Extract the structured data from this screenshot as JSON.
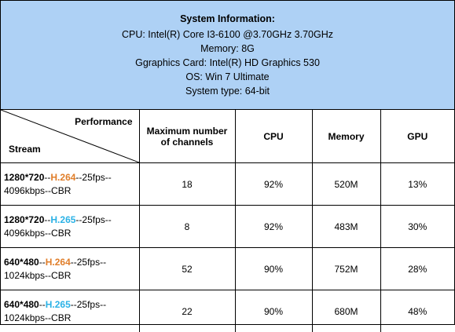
{
  "system_info": {
    "title": "System Information:",
    "cpu": "CPU:  Intel(R) Core I3-6100 @3.70GHz 3.70GHz",
    "memory": "Memory:   8G",
    "graphics": "Ggraphics Card:   Intel(R) HD Graphics 530",
    "os": "OS:   Win 7 Ultimate",
    "system_type": "System type: 64-bit",
    "background_color": "#aed1f5"
  },
  "table": {
    "header": {
      "performance": "Performance",
      "stream": "Stream",
      "channels_line1": "Maximum number",
      "channels_line2": "of channels",
      "cpu": "CPU",
      "memory": "Memory",
      "gpu": "GPU"
    },
    "codec_colors": {
      "H.264": "#e07e2a",
      "H.265": "#2bb2e6"
    },
    "rows": [
      {
        "resolution": "1280*720",
        "sep1": "--",
        "codec": "H.264",
        "rest1": "--25fps--",
        "line2": "4096kbps--CBR",
        "channels": "18",
        "cpu": "92%",
        "memory": "520M",
        "gpu": "13%"
      },
      {
        "resolution": "1280*720",
        "sep1": "--",
        "codec": "H.265",
        "rest1": "--25fps--",
        "line2": "4096kbps--CBR",
        "channels": "8",
        "cpu": "92%",
        "memory": "483M",
        "gpu": "30%"
      },
      {
        "resolution": "640*480",
        "sep1": "--",
        "codec": "H.264",
        "rest1": "--25fps--",
        "line2": "1024kbps--CBR",
        "channels": "52",
        "cpu": "90%",
        "memory": "752M",
        "gpu": "28%"
      },
      {
        "resolution": "640*480",
        "sep1": "--",
        "codec": "H.265",
        "rest1": "--25fps--",
        "line2": "1024kbps--CBR",
        "channels": "22",
        "cpu": "90%",
        "memory": "680M",
        "gpu": "48%"
      }
    ]
  }
}
